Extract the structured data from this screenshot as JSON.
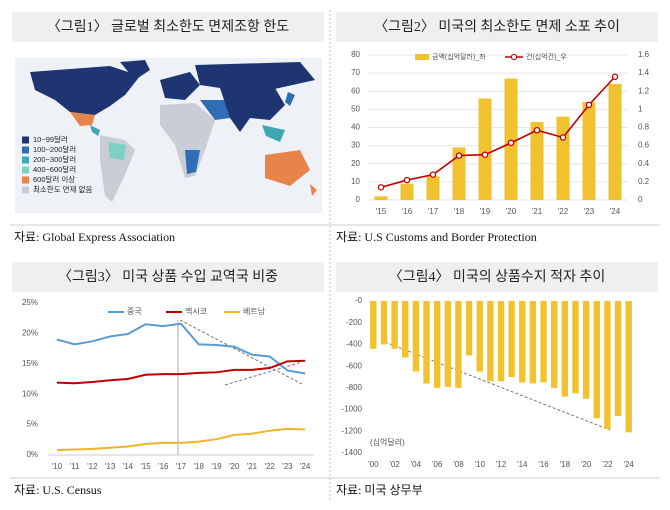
{
  "chart_data": [
    {
      "type": "map",
      "title": "〈그림1〉 글로벌 최소한도 면제조항 한도",
      "source": "자료: Global Express Association",
      "categories": [
        "10~99달러",
        "100~200달러",
        "200~300달러",
        "400~600달러",
        "600달러 이상",
        "최소한도 면제 없음"
      ],
      "colors": [
        "#1f3571",
        "#2f6db5",
        "#3fa7b3",
        "#7fd0c4",
        "#e8834a",
        "#c9ced6"
      ]
    },
    {
      "type": "bar-line",
      "title": "〈그림2〉 미국의 최소한도 면제 소포 추이",
      "source": "자료: U.S Customs and Border Protection",
      "categories": [
        "'15",
        "'16",
        "'17",
        "'18",
        "'19",
        "'20",
        "'21",
        "'22",
        "'23",
        "'24"
      ],
      "series": [
        {
          "name": "금액(십억달러)_좌",
          "color": "#f2c12e",
          "values": [
            2,
            9,
            13,
            29,
            56,
            67,
            43,
            46,
            54,
            64
          ]
        },
        {
          "name": "건(십억건)_우",
          "color": "#c00000",
          "axis": "y2",
          "values": [
            0.14,
            0.22,
            0.28,
            0.49,
            0.5,
            0.63,
            0.77,
            0.69,
            1.05,
            1.36
          ]
        }
      ],
      "ylim": [
        0,
        80
      ],
      "yticks": [
        0,
        10,
        20,
        30,
        40,
        50,
        60,
        70,
        80
      ],
      "y2lim": [
        0,
        1.6
      ],
      "y2ticks": [
        0,
        0.2,
        0.4,
        0.6,
        0.8,
        1,
        1.2,
        1.4,
        1.6
      ]
    },
    {
      "type": "line",
      "title": "〈그림3〉 미국 상품 수입 교역국 비중",
      "source": "자료: U.S. Census",
      "categories": [
        "'10",
        "'11",
        "'12",
        "'13",
        "'14",
        "'15",
        "'16",
        "'17",
        "'18",
        "'19",
        "'20",
        "'21",
        "'22",
        "'23",
        "'24"
      ],
      "series": [
        {
          "name": "중국",
          "color": "#5b9bd5",
          "values": [
            19,
            18.2,
            18.7,
            19.5,
            19.9,
            21.5,
            21.2,
            21.6,
            18.2,
            18.1,
            17.8,
            16.5,
            16.2,
            13.9,
            13.4
          ]
        },
        {
          "name": "멕시코",
          "color": "#c00000",
          "values": [
            11.9,
            11.8,
            12.0,
            12.3,
            12.5,
            13.2,
            13.3,
            13.3,
            13.5,
            13.6,
            14.0,
            14.0,
            14.3,
            15.4,
            15.5
          ]
        },
        {
          "name": "베트남",
          "color": "#f0b429",
          "values": [
            0.8,
            0.9,
            1.0,
            1.2,
            1.4,
            1.8,
            2.0,
            2.0,
            2.2,
            2.6,
            3.3,
            3.5,
            4.0,
            4.3,
            4.2
          ]
        }
      ],
      "ylim": [
        0,
        25
      ],
      "yticks": [
        {
          "value": 0,
          "label": "0%"
        },
        {
          "value": 5,
          "label": "5%"
        },
        {
          "value": 10,
          "label": "10%"
        },
        {
          "value": 15,
          "label": "15%"
        },
        {
          "value": 20,
          "label": "20%"
        },
        {
          "value": 25,
          "label": "25%"
        }
      ]
    },
    {
      "type": "bar",
      "title": "〈그림4〉 미국의 상품수지 적자 추이",
      "source": "자료: 미국 상무부",
      "annotation": "(십억달러)",
      "categories": [
        "'00",
        null,
        "'02",
        null,
        "'04",
        null,
        "'06",
        null,
        "'08",
        null,
        "'10",
        null,
        "'12",
        null,
        "'14",
        null,
        "'16",
        null,
        "'18",
        null,
        "'20",
        null,
        "'22",
        null,
        "'24"
      ],
      "values": [
        -440,
        -400,
        -440,
        -520,
        -650,
        -760,
        -800,
        -790,
        -800,
        -500,
        -650,
        -740,
        -740,
        -700,
        -750,
        -760,
        -750,
        -800,
        -880,
        -850,
        -900,
        -1080,
        -1180,
        -1060,
        -1210
      ],
      "color": "#f2c12e",
      "ylim": [
        -1400,
        0
      ],
      "yticks": [
        {
          "value": 0,
          "label": "-0"
        },
        -200,
        -400,
        -600,
        -800,
        -1000,
        -1200,
        -1400
      ]
    }
  ]
}
